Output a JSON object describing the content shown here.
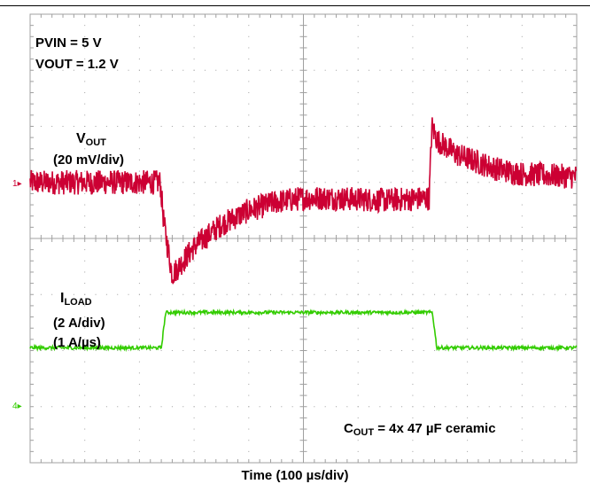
{
  "annotations": {
    "pvin": "PVIN = 5 V",
    "vout": "VOUT = 1.2 V",
    "vout_label_main": "V",
    "vout_label_sub": "OUT",
    "vout_scale": "(20 mV/div)",
    "iload_label_main": "I",
    "iload_label_sub": "LOAD",
    "iload_scale": "(2 A/div)",
    "iload_slew": "(1 A/µs)",
    "cout_main": "C",
    "cout_sub": "OUT",
    "cout_rest": " = 4x 47 µF ceramic"
  },
  "markers": {
    "ch1": "1",
    "ch4": "4"
  },
  "colors": {
    "vout_trace": "#cc0033",
    "iload_trace": "#33cc00",
    "grid": "#a0a0a0",
    "ch4_marker": "#33cc00"
  },
  "chart_data": {
    "type": "line",
    "title": "",
    "xlabel": "Time (100 µs/div)",
    "ylabel": "",
    "x_divisions": 10,
    "y_divisions": 8,
    "xlim": [
      0,
      10
    ],
    "ylim": [
      -4,
      4
    ],
    "x_unit": "div",
    "y_unit": "div",
    "series": [
      {
        "name": "VOUT",
        "scale": "20 mV/div",
        "x": [
          0,
          2.38,
          2.45,
          2.6,
          3.0,
          3.5,
          4.0,
          4.5,
          5.0,
          5.5,
          6.0,
          6.5,
          7.3,
          7.35,
          7.45,
          7.8,
          8.5,
          9.0,
          10.0
        ],
        "y": [
          1.0,
          1.0,
          0.25,
          -0.65,
          -0.15,
          0.25,
          0.5,
          0.65,
          0.72,
          0.72,
          0.7,
          0.68,
          0.72,
          2.0,
          1.75,
          1.5,
          1.25,
          1.15,
          1.1
        ],
        "noise_div": 0.22
      },
      {
        "name": "ILOAD",
        "scale": "2 A/div",
        "x": [
          0,
          2.4,
          2.48,
          7.36,
          7.44,
          10.0
        ],
        "y": [
          -1.95,
          -1.95,
          -1.32,
          -1.32,
          -1.95,
          -1.95
        ],
        "noise_div": 0.03
      }
    ]
  }
}
